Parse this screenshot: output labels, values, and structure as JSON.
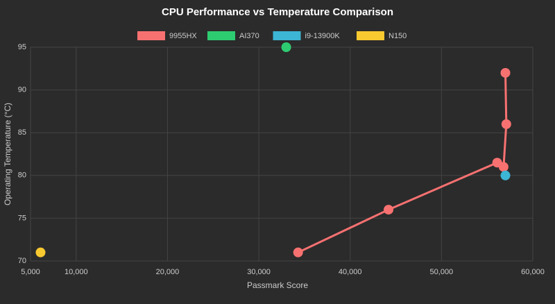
{
  "chart_data": {
    "type": "scatter",
    "title": "CPU Performance vs Temperature Comparison",
    "x_label": "Passmark Score",
    "y_label": "Operating Temperature (°C)",
    "series": [
      {
        "name": "9955HX",
        "color": "#f87171",
        "mode": "lines+markers",
        "x": [
          34300,
          44200,
          56100,
          56800,
          57100,
          57000
        ],
        "values": [
          71,
          76,
          81.5,
          81,
          86,
          92
        ]
      },
      {
        "name": "AI370",
        "color": "#2ecc71",
        "mode": "markers",
        "x": [
          33000
        ],
        "values": [
          95
        ]
      },
      {
        "name": "i9-13900K",
        "color": "#3db5d4",
        "mode": "markers",
        "x": [
          57000
        ],
        "values": [
          80
        ]
      },
      {
        "name": "N150",
        "color": "#f9c930",
        "mode": "markers",
        "x": [
          6100
        ],
        "values": [
          71
        ]
      }
    ],
    "xlim": [
      5000,
      60000
    ],
    "xticks": [
      {
        "value": 5000,
        "label": "5,000"
      },
      {
        "value": 10000,
        "label": "10,000"
      },
      {
        "value": 20000,
        "label": "20,000"
      },
      {
        "value": 30000,
        "label": "30,000"
      },
      {
        "value": 40000,
        "label": "40,000"
      },
      {
        "value": 50000,
        "label": "50,000"
      },
      {
        "value": 60000,
        "label": "60,000"
      }
    ],
    "ylim": [
      70,
      95
    ],
    "yticks": [
      70,
      75,
      80,
      85,
      90,
      95
    ],
    "grid": true,
    "legend": "top"
  }
}
